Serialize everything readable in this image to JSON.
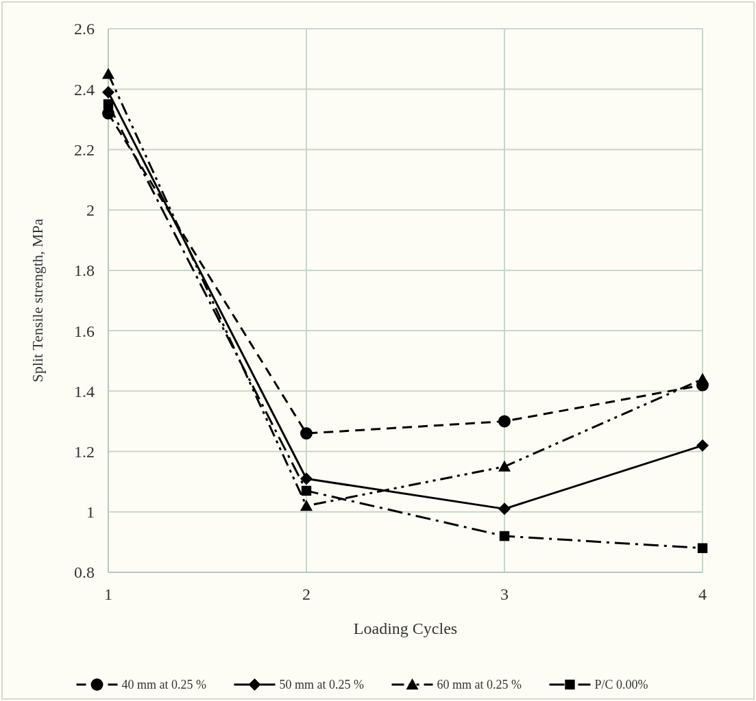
{
  "chart_data": {
    "type": "line",
    "xlabel": "Loading Cycles",
    "ylabel": "Split Tensile strength, MPa",
    "x": [
      1,
      2,
      3,
      4
    ],
    "xlim": [
      1,
      4
    ],
    "xticks": [
      1,
      2,
      3,
      4
    ],
    "ylim": [
      0.8,
      2.6
    ],
    "yticks": [
      0.8,
      1,
      1.2,
      1.4,
      1.6,
      1.8,
      2,
      2.2,
      2.4,
      2.6
    ],
    "grid": true,
    "legend": "bottom",
    "series": [
      {
        "name": "40 mm at 0.25 %",
        "color": "#000000",
        "values": [
          2.32,
          1.26,
          1.3,
          1.42
        ],
        "marker": "circle",
        "line_style": "dashed"
      },
      {
        "name": "50 mm at 0.25 %",
        "color": "#000000",
        "values": [
          2.39,
          1.11,
          1.01,
          1.22
        ],
        "marker": "diamond",
        "line_style": "solid"
      },
      {
        "name": "60 mm at 0.25 %",
        "color": "#000000",
        "values": [
          2.45,
          1.02,
          1.15,
          1.44
        ],
        "marker": "triangle",
        "line_style": "dashdotdot"
      },
      {
        "name": "P/C 0.00%",
        "color": "#000000",
        "values": [
          2.35,
          1.07,
          0.92,
          0.88
        ],
        "marker": "square",
        "line_style": "dashdot"
      }
    ]
  }
}
